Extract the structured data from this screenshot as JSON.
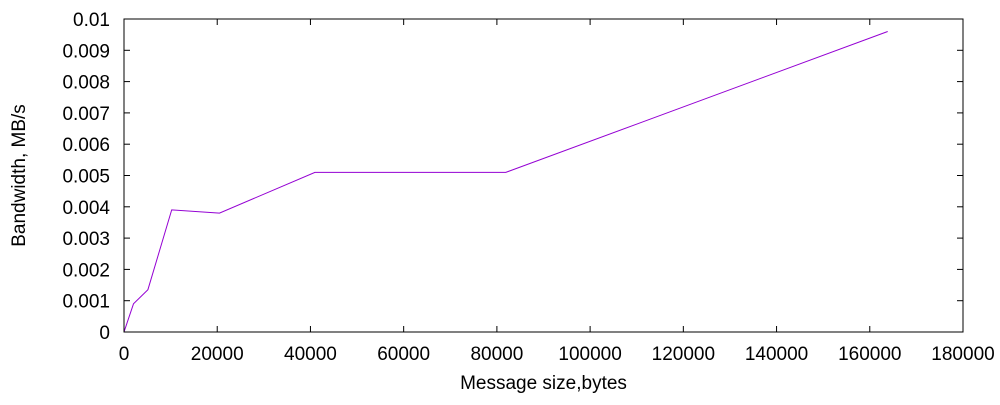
{
  "chart_data": {
    "type": "line",
    "title": "",
    "xlabel": "Message size,bytes",
    "ylabel": "Bandwidth, MB/s",
    "xlim": [
      0,
      180000
    ],
    "ylim": [
      0,
      0.01
    ],
    "xticks": [
      0,
      20000,
      40000,
      60000,
      80000,
      100000,
      120000,
      140000,
      160000,
      180000
    ],
    "xtick_labels": [
      "0",
      "20000",
      "40000",
      "60000",
      "80000",
      "100000",
      "120000",
      "140000",
      "160000",
      "180000"
    ],
    "yticks": [
      0,
      0.001,
      0.002,
      0.003,
      0.004,
      0.005,
      0.006,
      0.007,
      0.008,
      0.009,
      0.01
    ],
    "ytick_labels": [
      "0",
      "0.001",
      "0.002",
      "0.003",
      "0.004",
      "0.005",
      "0.006",
      "0.007",
      "0.008",
      "0.009",
      "0.01"
    ],
    "grid": false,
    "legend": "none",
    "series": [
      {
        "color": "#9400d3",
        "x": [
          0,
          2048,
          5120,
          10240,
          20480,
          40960,
          81920,
          163840
        ],
        "y": [
          0.0,
          0.0009,
          0.00135,
          0.0039,
          0.0038,
          0.0051,
          0.0051,
          0.0096
        ]
      }
    ]
  }
}
